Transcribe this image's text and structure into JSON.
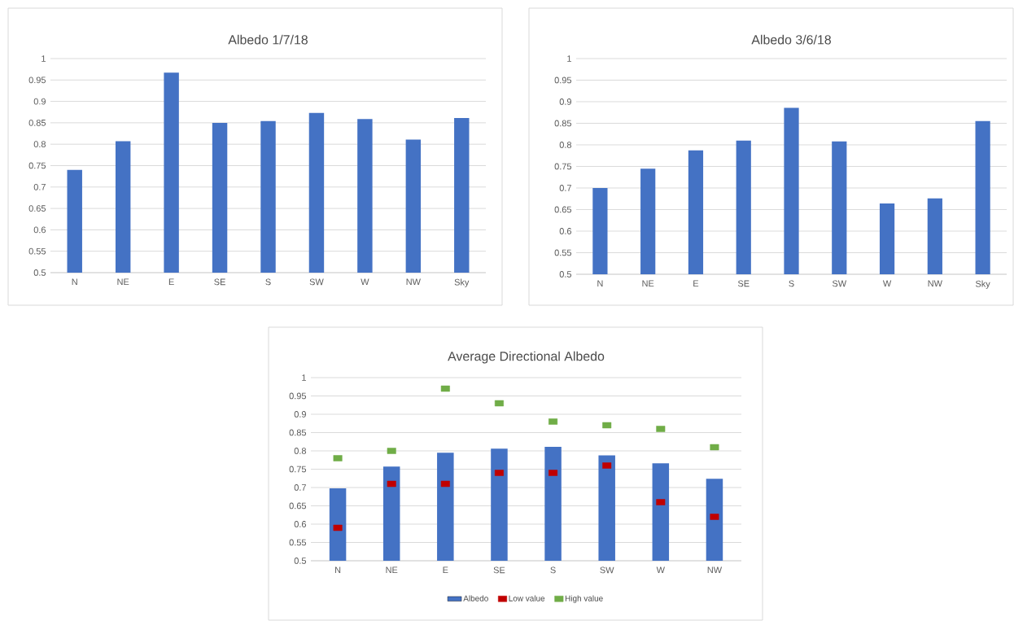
{
  "chart_data": [
    {
      "type": "bar",
      "title": "Albedo 1/7/18",
      "categories": [
        "N",
        "NE",
        "E",
        "SE",
        "S",
        "SW",
        "W",
        "NW",
        "Sky"
      ],
      "values": [
        0.74,
        0.807,
        0.967,
        0.85,
        0.854,
        0.873,
        0.859,
        0.811,
        0.861
      ],
      "color": "#4472c4",
      "ylim": [
        0.5,
        1
      ],
      "yticks": [
        0.5,
        0.55,
        0.6,
        0.65,
        0.7,
        0.75,
        0.8,
        0.85,
        0.9,
        0.95,
        1
      ],
      "grid": "y"
    },
    {
      "type": "bar",
      "title": "Albedo 3/6/18",
      "categories": [
        "N",
        "NE",
        "E",
        "SE",
        "S",
        "SW",
        "W",
        "NW",
        "Sky"
      ],
      "values": [
        0.7,
        0.745,
        0.787,
        0.81,
        0.886,
        0.808,
        0.664,
        0.676,
        0.855
      ],
      "color": "#4472c4",
      "ylim": [
        0.5,
        1
      ],
      "yticks": [
        0.5,
        0.55,
        0.6,
        0.65,
        0.7,
        0.75,
        0.8,
        0.85,
        0.9,
        0.95,
        1
      ],
      "grid": "y"
    },
    {
      "type": "bar",
      "title": "Average Directional Albedo",
      "categories": [
        "N",
        "NE",
        "E",
        "SE",
        "S",
        "SW",
        "W",
        "NW"
      ],
      "series": [
        {
          "name": "Albedo",
          "type": "bar",
          "color": "#4472c4",
          "values": [
            0.698,
            0.757,
            0.795,
            0.806,
            0.811,
            0.788,
            0.766,
            0.724
          ]
        },
        {
          "name": "Low value",
          "type": "scatter",
          "marker": "square",
          "color": "#c00000",
          "values": [
            0.59,
            0.71,
            0.71,
            0.74,
            0.74,
            0.76,
            0.66,
            0.62
          ]
        },
        {
          "name": "High value",
          "type": "scatter",
          "marker": "square",
          "color": "#70ad47",
          "values": [
            0.78,
            0.8,
            0.97,
            0.93,
            0.88,
            0.87,
            0.86,
            0.81
          ]
        }
      ],
      "ylim": [
        0.5,
        1
      ],
      "yticks": [
        0.5,
        0.55,
        0.6,
        0.65,
        0.7,
        0.75,
        0.8,
        0.85,
        0.9,
        0.95,
        1
      ],
      "grid": "y",
      "legend": "bottom"
    }
  ]
}
